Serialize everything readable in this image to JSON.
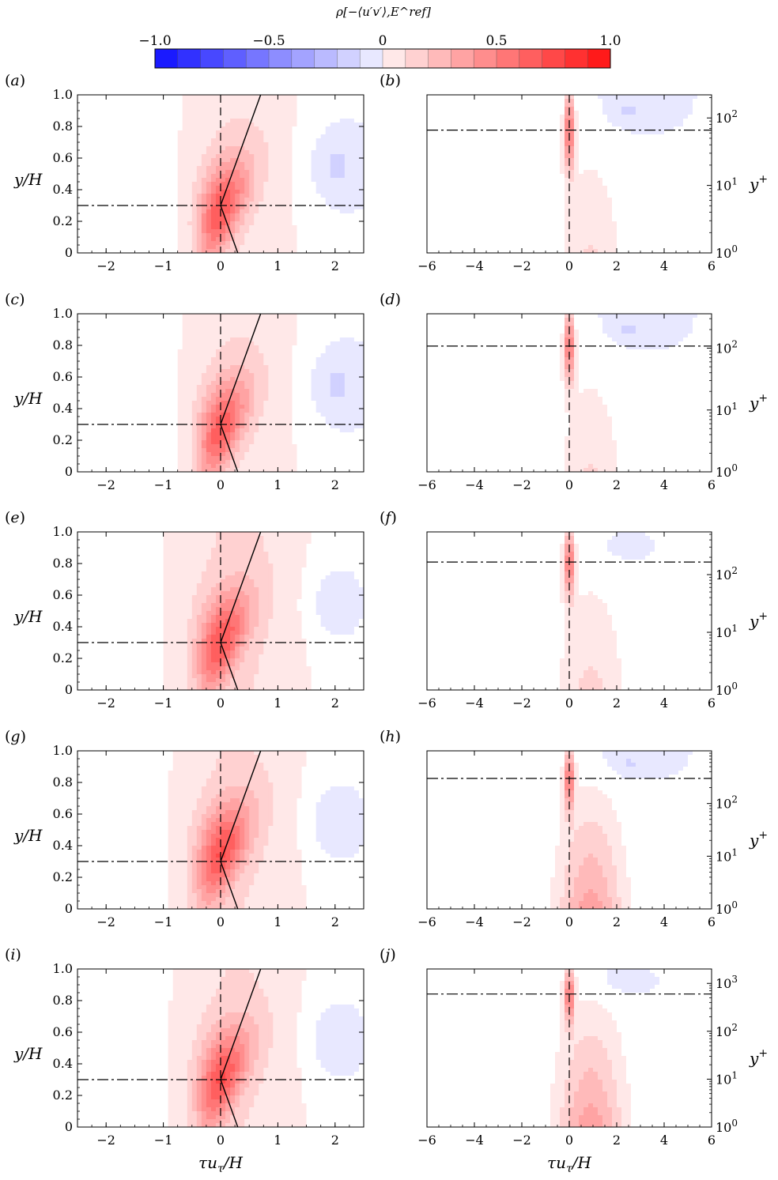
{
  "colorbar": {
    "label": "ρ[−⟨u′v′⟩,E^ref]",
    "ticks": [
      "−1.0",
      "−0.5",
      "0",
      "0.5",
      "1.0"
    ],
    "range": [
      -1.0,
      1.0
    ],
    "levels": 20,
    "neg_color": "#1a1aff",
    "pos_color": "#ff1a1a"
  },
  "chart_data": [
    {
      "type": "heatmap",
      "panel": "(a)",
      "xlabel": "",
      "ylabel": "y/H",
      "xlim": [
        -2.5,
        2.5
      ],
      "ylim": [
        0,
        1
      ],
      "xticks": [
        "−2",
        "−1",
        "0",
        "1",
        "2"
      ],
      "yticks": [
        "0",
        "0.2",
        "0.4",
        "0.6",
        "0.8",
        "1.0"
      ],
      "ref_line_y": 0.3,
      "peak": {
        "tau": 0.0,
        "y": 0.27,
        "rho": 0.62
      },
      "bg": 0.05
    },
    {
      "type": "heatmap",
      "panel": "(b)",
      "xlabel": "",
      "ylabel": "y+",
      "xlim": [
        -6,
        6
      ],
      "ylim": [
        1,
        220
      ],
      "xticks": [
        "−6",
        "−4",
        "−2",
        "0",
        "2",
        "4",
        "6"
      ],
      "yticks": [
        "10^0",
        "10^1",
        "10^2"
      ],
      "ref_line_yplus": 66,
      "peak": {
        "tau": 0.0,
        "yplus": 66,
        "rho": 0.65
      },
      "bg": 0.03
    },
    {
      "type": "heatmap",
      "panel": "(c)",
      "xlabel": "",
      "ylabel": "y/H",
      "xlim": [
        -2.5,
        2.5
      ],
      "ylim": [
        0,
        1
      ],
      "xticks": [
        "−2",
        "−1",
        "0",
        "1",
        "2"
      ],
      "yticks": [
        "0",
        "0.2",
        "0.4",
        "0.6",
        "0.8",
        "1.0"
      ],
      "ref_line_y": 0.3,
      "peak": {
        "tau": 0.0,
        "y": 0.27,
        "rho": 0.6
      },
      "bg": 0.05
    },
    {
      "type": "heatmap",
      "panel": "(d)",
      "xlabel": "",
      "ylabel": "y+",
      "xlim": [
        -6,
        6
      ],
      "ylim": [
        1,
        360
      ],
      "xticks": [
        "−6",
        "−4",
        "−2",
        "0",
        "2",
        "4",
        "6"
      ],
      "yticks": [
        "10^0",
        "10^1",
        "10^2"
      ],
      "ref_line_yplus": 108,
      "peak": {
        "tau": 0.0,
        "yplus": 108,
        "rho": 0.62
      },
      "bg": 0.03
    },
    {
      "type": "heatmap",
      "panel": "(e)",
      "xlabel": "",
      "ylabel": "y/H",
      "xlim": [
        -2.5,
        2.5
      ],
      "ylim": [
        0,
        1
      ],
      "xticks": [
        "−2",
        "−1",
        "0",
        "1",
        "2"
      ],
      "yticks": [
        "0",
        "0.2",
        "0.4",
        "0.6",
        "0.8",
        "1.0"
      ],
      "ref_line_y": 0.3,
      "peak": {
        "tau": 0.0,
        "y": 0.3,
        "rho": 0.6
      },
      "bg": 0.08
    },
    {
      "type": "heatmap",
      "panel": "(f)",
      "xlabel": "",
      "ylabel": "y+",
      "xlim": [
        -6,
        6
      ],
      "ylim": [
        1,
        550
      ],
      "xticks": [
        "−6",
        "−4",
        "−2",
        "0",
        "2",
        "4",
        "6"
      ],
      "yticks": [
        "10^0",
        "10^1",
        "10^2"
      ],
      "ref_line_yplus": 165,
      "peak": {
        "tau": 0.0,
        "yplus": 165,
        "rho": 0.6
      },
      "bg": 0.05
    },
    {
      "type": "heatmap",
      "panel": "(g)",
      "xlabel": "",
      "ylabel": "y/H",
      "xlim": [
        -2.5,
        2.5
      ],
      "ylim": [
        0,
        1
      ],
      "xticks": [
        "−2",
        "−1",
        "0",
        "1",
        "2"
      ],
      "yticks": [
        "0",
        "0.2",
        "0.4",
        "0.6",
        "0.8",
        "1.0"
      ],
      "ref_line_y": 0.3,
      "peak": {
        "tau": 0.0,
        "y": 0.35,
        "rho": 0.62
      },
      "bg": 0.07
    },
    {
      "type": "heatmap",
      "panel": "(h)",
      "xlabel": "",
      "ylabel": "y+",
      "xlim": [
        -6,
        6
      ],
      "ylim": [
        1,
        1000
      ],
      "xticks": [
        "−6",
        "−4",
        "−2",
        "0",
        "2",
        "4",
        "6"
      ],
      "yticks": [
        "10^0",
        "10^1",
        "10^2"
      ],
      "ref_line_yplus": 300,
      "peak": {
        "tau": 0.0,
        "yplus": 300,
        "rho": 0.6
      },
      "bg": 0.03
    },
    {
      "type": "heatmap",
      "panel": "(i)",
      "xlabel": "τuτ/H",
      "ylabel": "y/H",
      "xlim": [
        -2.5,
        2.5
      ],
      "ylim": [
        0,
        1
      ],
      "xticks": [
        "−2",
        "−1",
        "0",
        "1",
        "2"
      ],
      "yticks": [
        "0",
        "0.2",
        "0.4",
        "0.6",
        "0.8",
        "1.0"
      ],
      "ref_line_y": 0.3,
      "peak": {
        "tau": 0.0,
        "y": 0.3,
        "rho": 0.62
      },
      "bg": 0.07
    },
    {
      "type": "heatmap",
      "panel": "(j)",
      "xlabel": "τuτ/H",
      "ylabel": "y+",
      "xlim": [
        -6,
        6
      ],
      "ylim": [
        1,
        2000
      ],
      "xticks": [
        "−6",
        "−4",
        "−2",
        "0",
        "2",
        "4",
        "6"
      ],
      "yticks": [
        "10^0",
        "10^1",
        "10^2",
        "10^3"
      ],
      "ref_line_yplus": 600,
      "peak": {
        "tau": 0.0,
        "yplus": 600,
        "rho": 0.6
      },
      "bg": 0.04
    }
  ]
}
